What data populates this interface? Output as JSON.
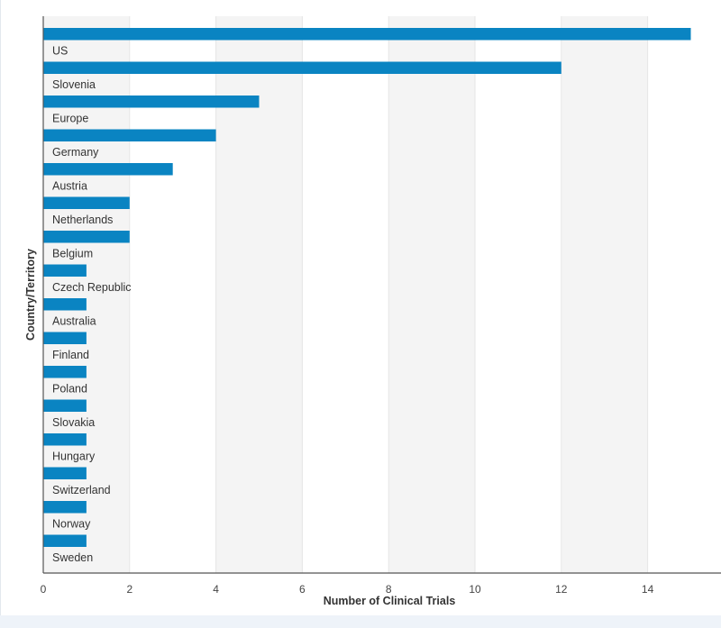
{
  "chart_data": {
    "type": "bar",
    "orientation": "horizontal",
    "xlabel": "Number of Clinical Trials",
    "ylabel": "Country/Territory",
    "xlim": [
      0,
      15
    ],
    "xticks": [
      0,
      2,
      4,
      6,
      8,
      10,
      12,
      14
    ],
    "grid": "alternating vertical bands",
    "bar_color": "#0a84c2",
    "categories": [
      "US",
      "Slovenia",
      "Europe",
      "Germany",
      "Austria",
      "Netherlands",
      "Belgium",
      "Czech Republic",
      "Australia",
      "Finland",
      "Poland",
      "Slovakia",
      "Hungary",
      "Switzerland",
      "Norway",
      "Sweden"
    ],
    "values": [
      15,
      12,
      5,
      4,
      3,
      2,
      2,
      1,
      1,
      1,
      1,
      1,
      1,
      1,
      1,
      1
    ]
  }
}
